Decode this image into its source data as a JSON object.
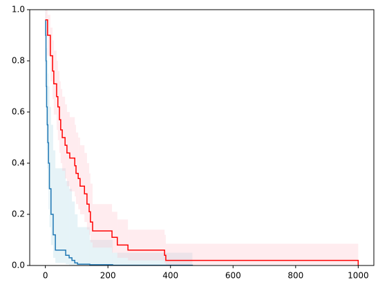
{
  "chart_data": {
    "type": "survival",
    "xlim": [
      -50,
      1050
    ],
    "xticks": [
      0,
      200,
      400,
      600,
      800,
      1000
    ],
    "ylim": [
      0,
      1
    ],
    "yticks": [
      {
        "value": 0,
        "label": "0.0"
      },
      0.2,
      0.4,
      0.6,
      0.8,
      {
        "value": 1,
        "label": "1.0"
      }
    ],
    "series": [
      {
        "color": "#1f77b4",
        "band_color": "#add8e6",
        "x": [
          0,
          1,
          2,
          3,
          4,
          6,
          8,
          10,
          13,
          18,
          25,
          32,
          65,
          76,
          85,
          94,
          103,
          142,
          215,
          470
        ],
        "values": [
          0.96,
          0.9,
          0.8,
          0.7,
          0.62,
          0.55,
          0.48,
          0.4,
          0.3,
          0.2,
          0.12,
          0.06,
          0.04,
          0.03,
          0.02,
          0.01,
          0.005,
          0.003,
          0.001,
          0
        ],
        "upper": [
          1,
          1,
          0.97,
          0.9,
          0.85,
          0.8,
          0.75,
          0.7,
          0.62,
          0.55,
          0.45,
          0.38,
          0.33,
          0.3,
          0.25,
          0.2,
          0.15,
          0.1,
          0.05,
          0
        ],
        "lower": [
          0.9,
          0.8,
          0.65,
          0.55,
          0.45,
          0.38,
          0.3,
          0.22,
          0.15,
          0.08,
          0.03,
          0.01,
          0.005,
          0.002,
          0.001,
          0,
          0,
          0,
          0,
          0
        ]
      },
      {
        "color": "#ff0000",
        "band_color": "#ffc0cb",
        "x": [
          0,
          7,
          16,
          23,
          27,
          36,
          40,
          45,
          49,
          54,
          63,
          69,
          78,
          94,
          98,
          105,
          111,
          125,
          133,
          140,
          144,
          151,
          213,
          230,
          264,
          381,
          385,
          1000
        ],
        "values": [
          0.96,
          0.9,
          0.82,
          0.76,
          0.71,
          0.66,
          0.62,
          0.57,
          0.53,
          0.5,
          0.47,
          0.44,
          0.42,
          0.39,
          0.36,
          0.34,
          0.31,
          0.28,
          0.24,
          0.21,
          0.17,
          0.135,
          0.11,
          0.08,
          0.06,
          0.04,
          0.02,
          0
        ],
        "upper": [
          1,
          0.98,
          0.93,
          0.88,
          0.84,
          0.8,
          0.76,
          0.72,
          0.69,
          0.66,
          0.63,
          0.6,
          0.58,
          0.55,
          0.52,
          0.5,
          0.47,
          0.44,
          0.4,
          0.36,
          0.32,
          0.24,
          0.21,
          0.18,
          0.14,
          0.12,
          0.085,
          0
        ],
        "lower": [
          0.9,
          0.82,
          0.72,
          0.65,
          0.59,
          0.53,
          0.49,
          0.44,
          0.4,
          0.37,
          0.34,
          0.31,
          0.29,
          0.27,
          0.24,
          0.22,
          0.2,
          0.17,
          0.14,
          0.12,
          0.09,
          0.07,
          0.05,
          0.03,
          0.02,
          0.01,
          0.003,
          0
        ]
      }
    ]
  }
}
